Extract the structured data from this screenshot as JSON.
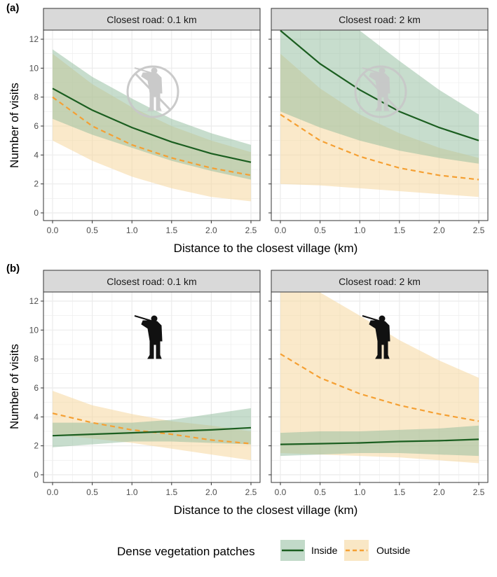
{
  "colors": {
    "inside_line": "#1b5e20",
    "inside_fill": "#8fbc9c",
    "outside_line": "#f5a033",
    "outside_fill": "#f5d79e",
    "strip_bg": "#d9d9d9",
    "grid": "#ebebeb"
  },
  "chart_data": [
    {
      "type": "line",
      "label": "(a)",
      "xlabel": "Distance to the closest village (km)",
      "ylabel": "Number of visits",
      "xlim": [
        0,
        2.5
      ],
      "ylim": [
        0,
        12
      ],
      "xticks": [
        "0.0",
        "0.5",
        "1.0",
        "1.5",
        "2.0",
        "2.5"
      ],
      "yticks": [
        "0",
        "2",
        "4",
        "6",
        "8",
        "10",
        "12"
      ],
      "icon": "hunter-crossed-out-icon",
      "facets": [
        {
          "strip": "Closest road: 0.1 km",
          "x": [
            0,
            0.5,
            1.0,
            1.5,
            2.0,
            2.5
          ],
          "series": [
            {
              "name": "Inside",
              "values": [
                8.6,
                7.1,
                5.9,
                4.9,
                4.1,
                3.5
              ],
              "lower": [
                6.5,
                5.4,
                4.5,
                3.6,
                2.9,
                2.3
              ],
              "upper": [
                11.3,
                9.4,
                7.9,
                6.5,
                5.5,
                4.7
              ]
            },
            {
              "name": "Outside",
              "values": [
                8.0,
                6.0,
                4.7,
                3.8,
                3.1,
                2.6
              ],
              "lower": [
                5.0,
                3.6,
                2.5,
                1.7,
                1.1,
                0.8
              ],
              "upper": [
                11.0,
                8.9,
                7.3,
                6.0,
                5.0,
                4.2
              ]
            }
          ]
        },
        {
          "strip": "Closest road: 2 km",
          "x": [
            0,
            0.5,
            1.0,
            1.5,
            2.0,
            2.5
          ],
          "series": [
            {
              "name": "Inside",
              "values": [
                12.6,
                10.3,
                8.5,
                7.0,
                5.9,
                5.0
              ],
              "lower": [
                7.0,
                5.9,
                5.0,
                4.3,
                3.8,
                3.4
              ],
              "upper": [
                12.6,
                12.6,
                12.6,
                10.5,
                8.5,
                6.8
              ]
            },
            {
              "name": "Outside",
              "values": [
                6.8,
                5.0,
                3.9,
                3.1,
                2.6,
                2.3
              ],
              "lower": [
                2.0,
                1.9,
                1.7,
                1.5,
                1.3,
                1.1
              ],
              "upper": [
                11.0,
                8.6,
                6.8,
                5.5,
                4.5,
                3.8
              ]
            }
          ]
        }
      ]
    },
    {
      "type": "line",
      "label": "(b)",
      "xlabel": "Distance to the closest village (km)",
      "ylabel": "Number of visits",
      "xlim": [
        0,
        2.5
      ],
      "ylim": [
        0,
        12
      ],
      "xticks": [
        "0.0",
        "0.5",
        "1.0",
        "1.5",
        "2.0",
        "2.5"
      ],
      "yticks": [
        "0",
        "2",
        "4",
        "6",
        "8",
        "10",
        "12"
      ],
      "icon": "hunter-icon",
      "facets": [
        {
          "strip": "Closest road: 0.1 km",
          "x": [
            0,
            0.5,
            1.0,
            1.5,
            2.0,
            2.5
          ],
          "series": [
            {
              "name": "Inside",
              "values": [
                2.7,
                2.8,
                2.9,
                3.0,
                3.1,
                3.25
              ],
              "lower": [
                1.9,
                2.1,
                2.3,
                2.3,
                2.2,
                2.1
              ],
              "upper": [
                3.6,
                3.6,
                3.6,
                3.8,
                4.2,
                4.6
              ]
            },
            {
              "name": "Outside",
              "values": [
                4.25,
                3.6,
                3.1,
                2.8,
                2.4,
                2.15
              ],
              "lower": [
                2.8,
                2.5,
                2.2,
                1.8,
                1.4,
                1.0
              ],
              "upper": [
                5.8,
                4.8,
                4.2,
                3.7,
                3.4,
                3.0
              ]
            }
          ]
        },
        {
          "strip": "Closest road: 2 km",
          "x": [
            0,
            0.5,
            1.0,
            1.5,
            2.0,
            2.5
          ],
          "series": [
            {
              "name": "Inside",
              "values": [
                2.1,
                2.15,
                2.2,
                2.3,
                2.35,
                2.45
              ],
              "lower": [
                1.3,
                1.4,
                1.5,
                1.5,
                1.4,
                1.3
              ],
              "upper": [
                2.9,
                3.0,
                3.0,
                3.1,
                3.2,
                3.4
              ]
            },
            {
              "name": "Outside",
              "values": [
                8.35,
                6.7,
                5.6,
                4.8,
                4.2,
                3.7
              ],
              "lower": [
                1.5,
                1.4,
                1.3,
                1.2,
                1.0,
                0.8
              ],
              "upper": [
                12.6,
                12.6,
                11.0,
                9.3,
                7.9,
                6.7
              ]
            }
          ]
        }
      ]
    }
  ],
  "legend": {
    "title": "Dense vegetation patches",
    "items": [
      {
        "name": "Inside",
        "line": "solid"
      },
      {
        "name": "Outside",
        "line": "dashed"
      }
    ]
  }
}
